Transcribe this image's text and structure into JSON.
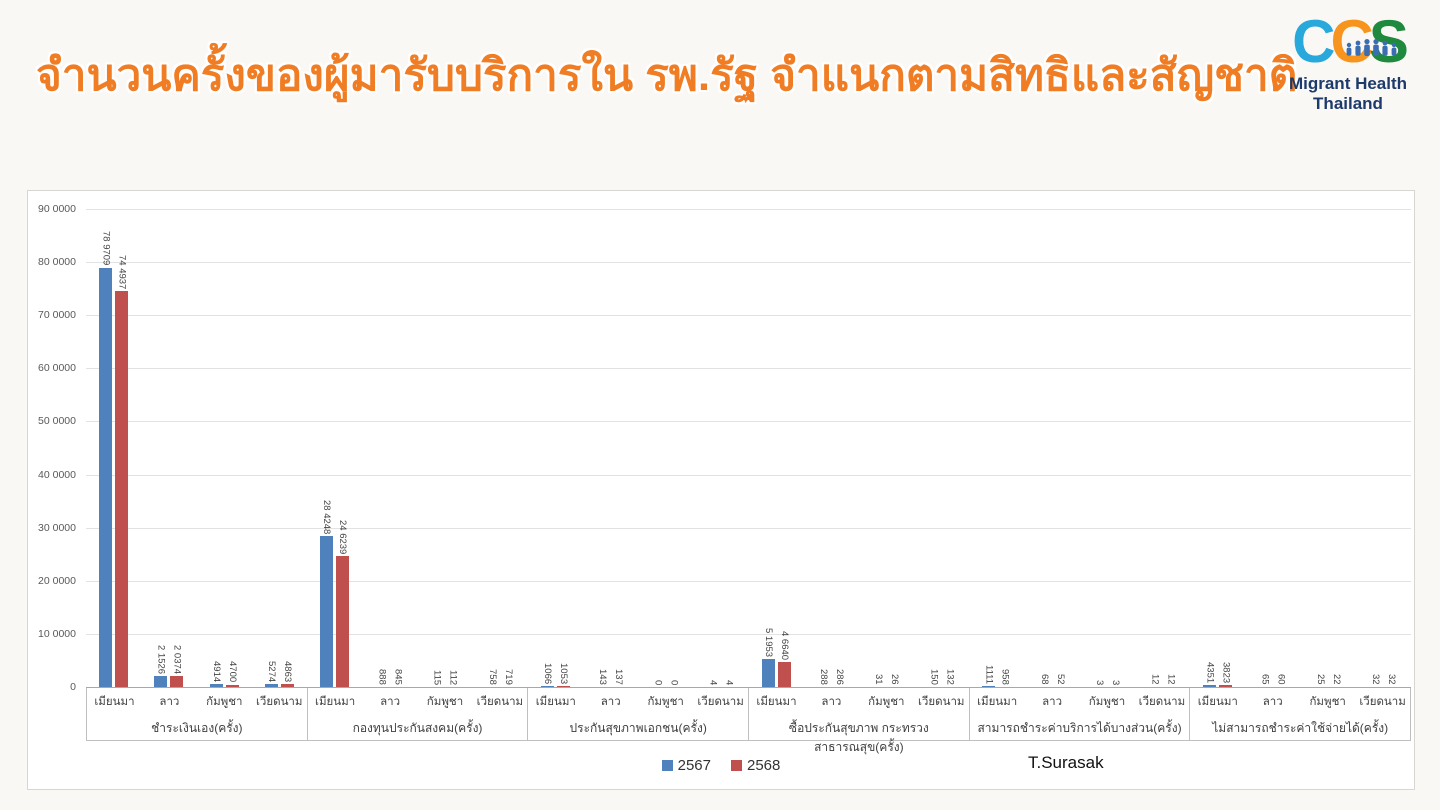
{
  "title": "จำนวนครั้งของผู้มารับบริการใน รพ.รัฐ จำแนกตามสิทธิและสัญชาติ",
  "logo": {
    "letter1": "C",
    "letter2": "C",
    "letter3": "S",
    "caption_line1": "Migrant Health",
    "caption_line2": "Thailand",
    "colors": {
      "c1": "#29a8dc",
      "c2": "#f7941e",
      "s": "#1f8a3d",
      "people": "#3a6db1",
      "caption": "#1c3a6b"
    }
  },
  "signature": "T.Surasak",
  "colors": {
    "title_orange": "#f07d23",
    "series_2567_blue": "#4f81bd",
    "series_2568_red": "#c0504d",
    "gridline": "#e2e2e2",
    "axis_text": "#595959"
  },
  "chart_data": {
    "type": "bar",
    "title": "จำนวนครั้งของผู้มารับบริการใน รพ.รัฐ จำแนกตามสิทธิและสัญชาติ",
    "xlabel": "",
    "ylabel": "",
    "ylim": [
      0,
      900000
    ],
    "ytick_step": 100000,
    "grid": "horizontal",
    "legend_position": "bottom",
    "number_format": "digit-groups-of-4-separated-by-space",
    "data_label_rotation": "vertical",
    "legend": [
      {
        "label": "2567",
        "color": "#4f81bd"
      },
      {
        "label": "2568",
        "color": "#c0504d"
      }
    ],
    "nationalities": [
      "เมียนมา",
      "ลาว",
      "กัมพูชา",
      "เวียดนาม"
    ],
    "groups": [
      {
        "label": "ชำระเงินเอง(ครั้ง)",
        "series": [
          {
            "name": "2567",
            "values": [
              789709,
              21526,
              4914,
              5274
            ]
          },
          {
            "name": "2568",
            "values": [
              744937,
              20374,
              4700,
              4863
            ]
          }
        ]
      },
      {
        "label": "กองทุนประกันสงคม(ครั้ง)",
        "series": [
          {
            "name": "2567",
            "values": [
              284248,
              888,
              115,
              758
            ]
          },
          {
            "name": "2568",
            "values": [
              246239,
              845,
              112,
              719
            ]
          }
        ]
      },
      {
        "label": "ประกันสุขภาพเอกชน(ครั้ง)",
        "series": [
          {
            "name": "2567",
            "values": [
              1066,
              143,
              0,
              4
            ]
          },
          {
            "name": "2568",
            "values": [
              1053,
              137,
              0,
              4
            ]
          }
        ]
      },
      {
        "label": "ซื้อประกันสุขภาพ กระทรวงสาธารณสุข(ครั้ง)",
        "series": [
          {
            "name": "2567",
            "values": [
              51953,
              288,
              31,
              150
            ]
          },
          {
            "name": "2568",
            "values": [
              46640,
              286,
              26,
              132
            ]
          }
        ]
      },
      {
        "label": "สามารถชำระค่าบริการได้บางส่วน(ครั้ง)",
        "series": [
          {
            "name": "2567",
            "values": [
              1111,
              68,
              3,
              12
            ]
          },
          {
            "name": "2568",
            "values": [
              958,
              52,
              3,
              12
            ]
          }
        ]
      },
      {
        "label": "ไม่สามารถชำระค่าใช้จ่ายได้(ครั้ง)",
        "series": [
          {
            "name": "2567",
            "values": [
              4351,
              65,
              25,
              32
            ]
          },
          {
            "name": "2568",
            "values": [
              3823,
              60,
              22,
              32
            ]
          }
        ]
      }
    ]
  }
}
